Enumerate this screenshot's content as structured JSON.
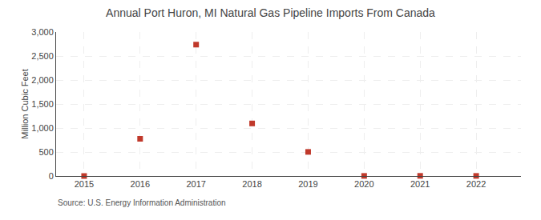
{
  "chart_data": {
    "type": "scatter",
    "title": "Annual Port Huron, MI Natural Gas Pipeline Imports From Canada",
    "ylabel": "Million Cubic Feet",
    "source": "Source: U.S. Energy Information Administration",
    "x": [
      2015,
      2016,
      2017,
      2018,
      2019,
      2020,
      2021,
      2022
    ],
    "values": [
      0,
      775,
      2737,
      1095,
      502,
      2,
      3,
      2
    ],
    "color": "#c0392b",
    "marker": "square",
    "xlim": [
      2014.5,
      2022.8
    ],
    "xticks": [
      2015,
      2016,
      2017,
      2018,
      2019,
      2020,
      2021,
      2022
    ],
    "ylim": [
      0,
      3000
    ],
    "yticks": [
      0,
      500,
      {
        "value": 1000,
        "label": "1,000"
      },
      {
        "value": 1500,
        "label": "1,500"
      },
      {
        "value": 2000,
        "label": "2,000"
      },
      {
        "value": 2500,
        "label": "2,500"
      },
      {
        "value": 3000,
        "label": "3,000"
      }
    ],
    "grid": true
  }
}
